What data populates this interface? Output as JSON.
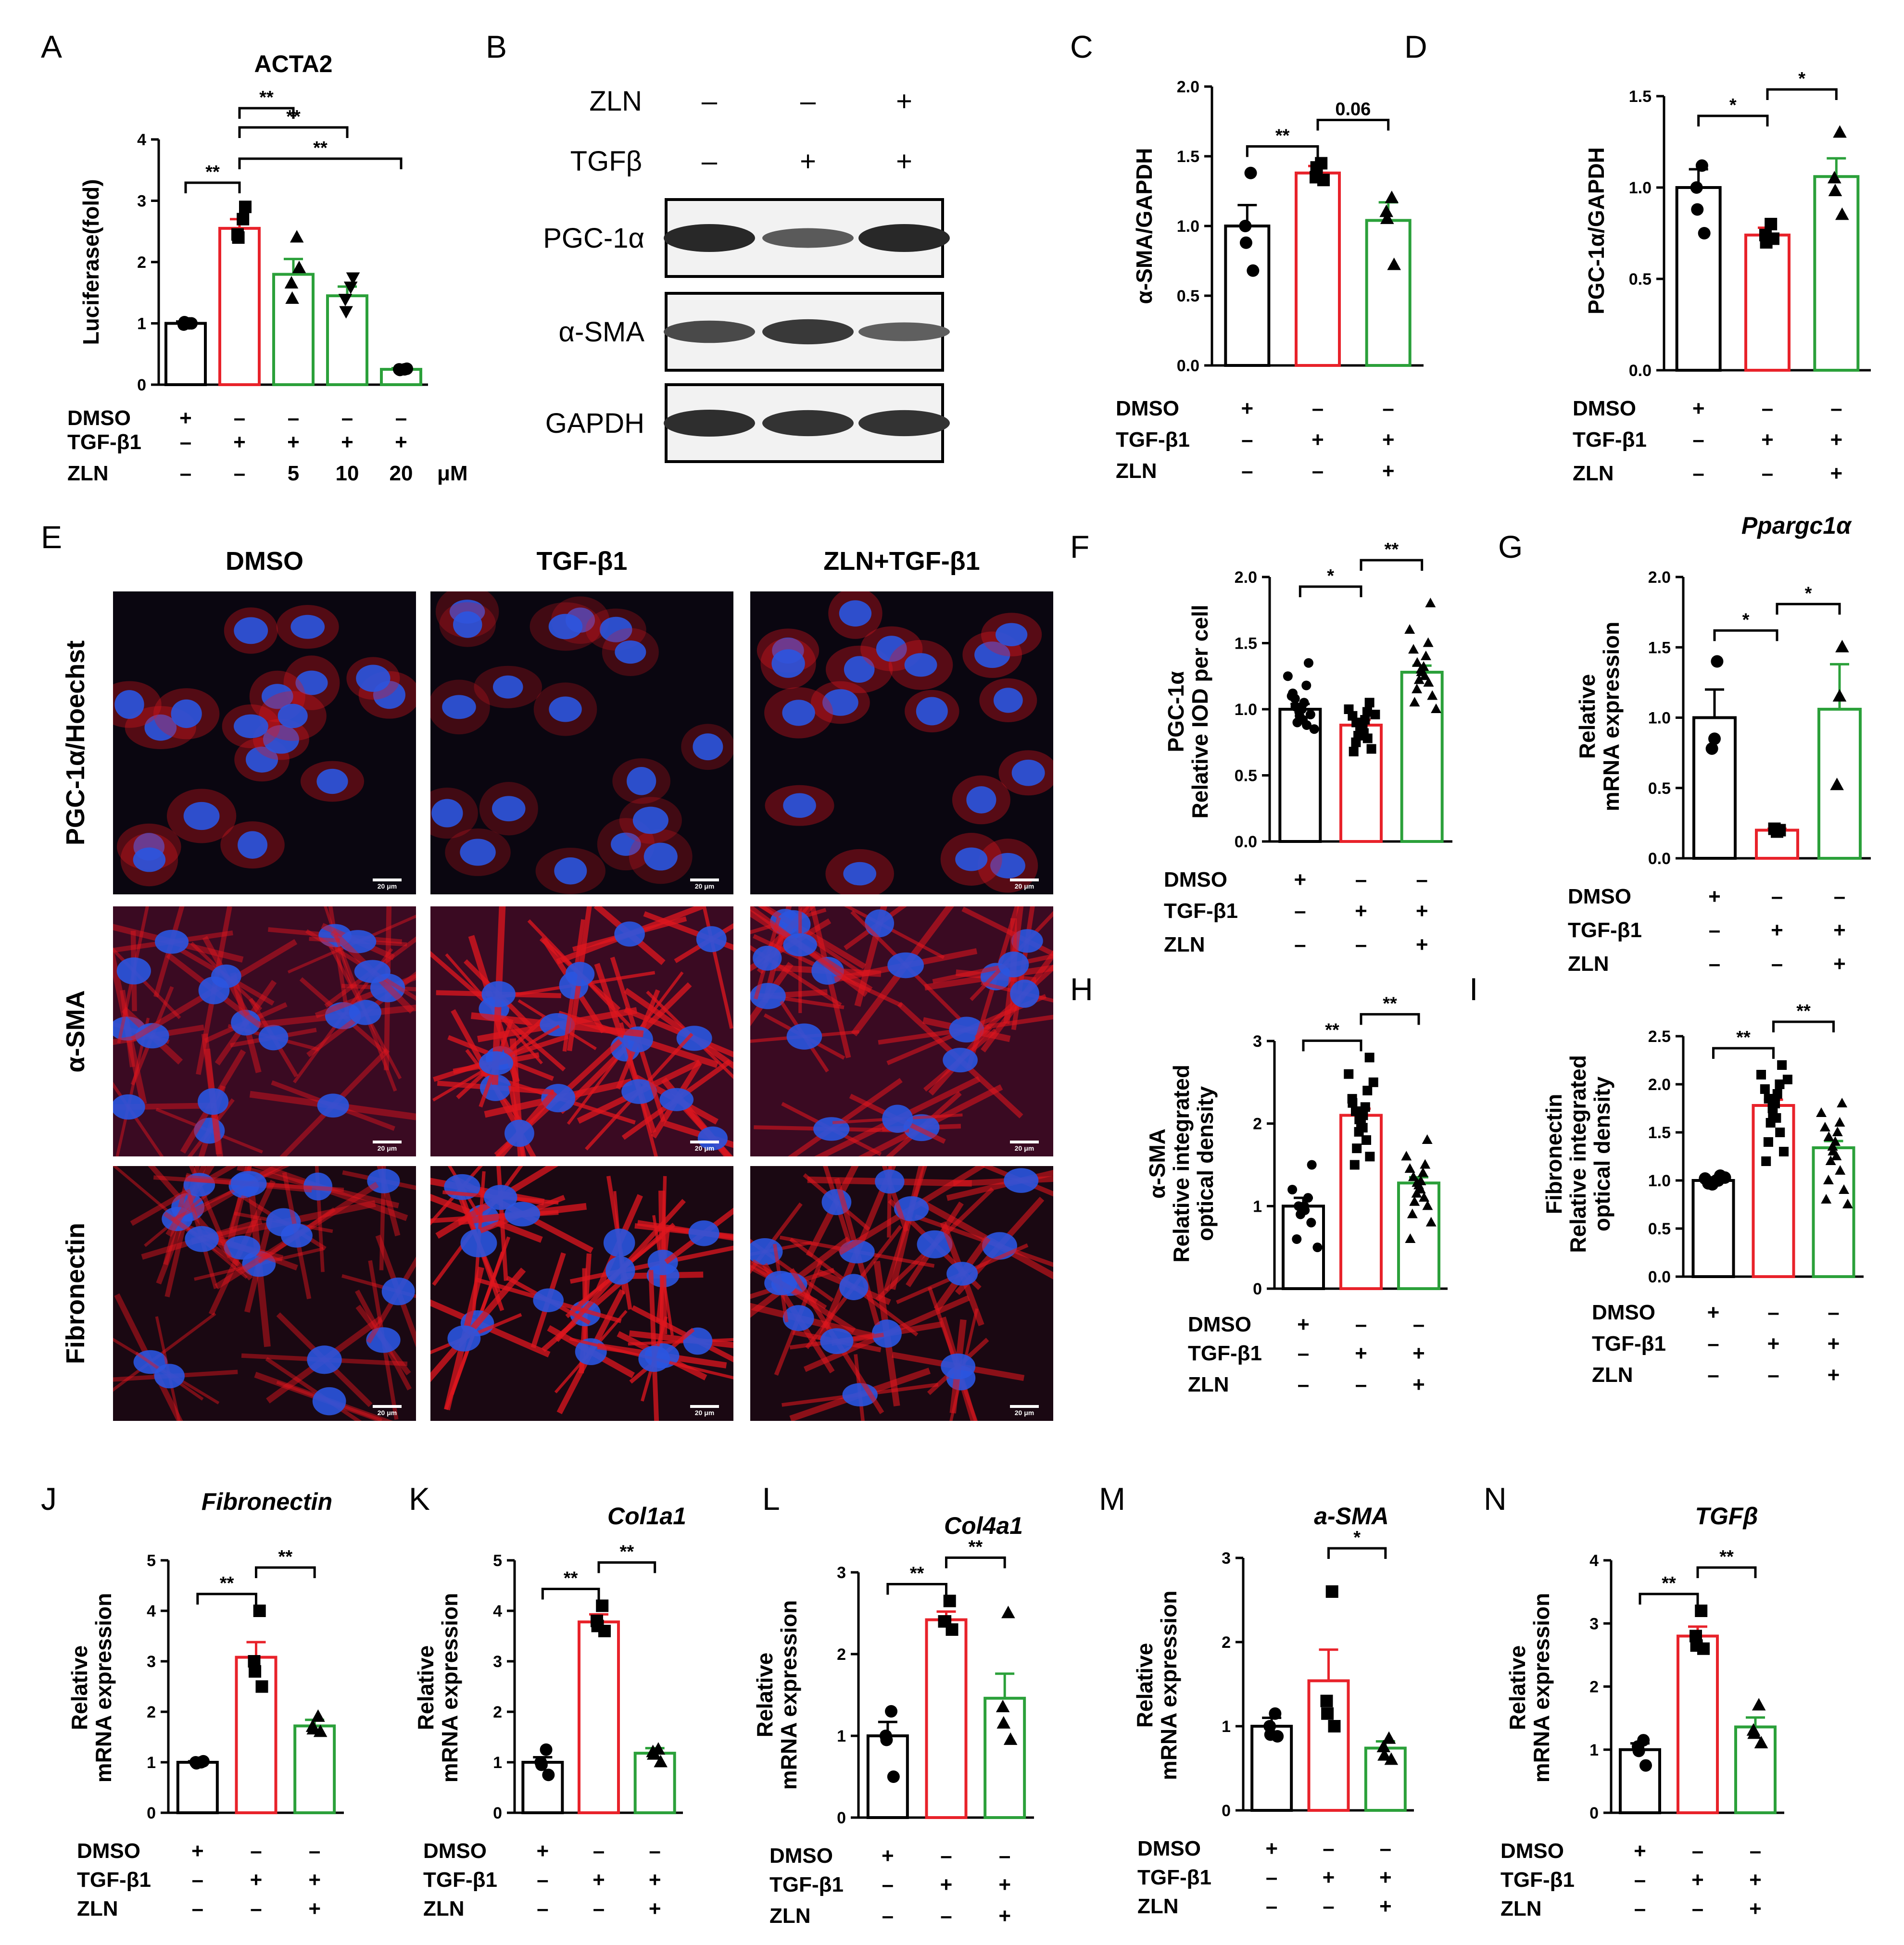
{
  "figure": {
    "panel_letters": [
      "A",
      "B",
      "C",
      "D",
      "E",
      "F",
      "G",
      "H",
      "I",
      "J",
      "K",
      "L",
      "M",
      "N"
    ],
    "colors": {
      "DMSO": "#000000",
      "TGF-β1": "#e8222a",
      "ZLN": "#2ba03a",
      "nucleus": "#2a55e0",
      "stain": "#e0161e"
    },
    "condition_rows": {
      "default": [
        {
          "label": "DMSO",
          "marks": [
            "+",
            "–",
            "–"
          ]
        },
        {
          "label": "TGF-β1",
          "marks": [
            "–",
            "+",
            "+"
          ]
        },
        {
          "label": "ZLN",
          "marks": [
            "–",
            "–",
            "+"
          ]
        }
      ],
      "A": [
        {
          "label": "DMSO",
          "marks": [
            "+",
            "–",
            "–",
            "–",
            "–"
          ]
        },
        {
          "label": "TGF-β1",
          "marks": [
            "–",
            "+",
            "+",
            "+",
            "+"
          ]
        },
        {
          "label": "ZLN",
          "marks": [
            "–",
            "–",
            "5",
            "10",
            "20"
          ]
        }
      ],
      "A_unit": "μM"
    },
    "western_blot": {
      "header_rows": [
        {
          "label": "ZLN",
          "marks": [
            "–",
            "–",
            "+"
          ]
        },
        {
          "label": "TGFβ",
          "marks": [
            "–",
            "+",
            "+"
          ]
        }
      ],
      "bands": [
        {
          "label": "PGC-1α",
          "intensity": [
            1.0,
            0.55,
            1.0
          ]
        },
        {
          "label": "α-SMA",
          "intensity": [
            0.7,
            0.85,
            0.5
          ]
        },
        {
          "label": "GAPDH",
          "intensity": [
            0.95,
            0.9,
            0.9
          ]
        }
      ]
    },
    "micrographs": {
      "columns": [
        "DMSO",
        "TGF-β1",
        "ZLN+TGF-β1"
      ],
      "rows": [
        "PGC-1α/Hoechst",
        "α-SMA",
        "Fibronectin"
      ],
      "scalebar": "20 μm"
    }
  },
  "chart_data": [
    {
      "id": "A",
      "type": "bar",
      "title": "ACTA2",
      "title_italic": false,
      "ylabel": "Luciferase(fold)",
      "ylim": [
        0,
        4
      ],
      "yticks": [
        "0",
        "1",
        "2",
        "3",
        "4"
      ],
      "categories": [
        "DMSO",
        "TGF-β1",
        "ZLN 5",
        "ZLN 10",
        "ZLN 20"
      ],
      "values": [
        1.0,
        2.55,
        1.8,
        1.45,
        0.25
      ],
      "sem": [
        0.03,
        0.15,
        0.25,
        0.15,
        0.02
      ],
      "points": [
        [
          1.0,
          0.98,
          1.02,
          1.0
        ],
        [
          2.7,
          2.45,
          2.4,
          2.9
        ],
        [
          2.4,
          1.65,
          1.4,
          1.9
        ],
        [
          1.6,
          1.4,
          1.2,
          1.75
        ],
        [
          0.25,
          0.25,
          0.24,
          0.26
        ]
      ],
      "markers": [
        "circle",
        "square",
        "triangle",
        "tri-down",
        "circle"
      ],
      "colors": [
        "#000000",
        "#e8222a",
        "#2ba03a",
        "#2ba03a",
        "#2ba03a"
      ],
      "brackets": [
        {
          "from": 0,
          "to": 1,
          "label": "**"
        },
        {
          "from": 1,
          "to": 2,
          "label": "**"
        },
        {
          "from": 1,
          "to": 3,
          "label": "**"
        },
        {
          "from": 1,
          "to": 4,
          "label": "**"
        }
      ]
    },
    {
      "id": "C",
      "type": "bar",
      "title": "",
      "ylabel": "α-SMA/GAPDH",
      "ylim": [
        0,
        2
      ],
      "yticks": [
        "0.0",
        "0.5",
        "1.0",
        "1.5",
        "2.0"
      ],
      "categories": [
        "DMSO",
        "TGF-β1",
        "ZLN+TGF-β1"
      ],
      "values": [
        1.0,
        1.38,
        1.04
      ],
      "sem": [
        0.15,
        0.05,
        0.13
      ],
      "points": [
        [
          1.38,
          1.0,
          0.88,
          0.68
        ],
        [
          1.45,
          1.35,
          1.42,
          1.33
        ],
        [
          1.2,
          1.1,
          1.05,
          0.72
        ]
      ],
      "markers": [
        "circle",
        "square",
        "triangle"
      ],
      "colors": [
        "#000000",
        "#e8222a",
        "#2ba03a"
      ],
      "brackets": [
        {
          "from": 0,
          "to": 1,
          "label": "**"
        },
        {
          "from": 1,
          "to": 2,
          "label": "0.06"
        }
      ]
    },
    {
      "id": "D",
      "type": "bar",
      "title": "",
      "ylabel": "PGC-1α/GAPDH",
      "ylim": [
        0,
        1.5
      ],
      "yticks": [
        "0.0",
        "0.5",
        "1.0",
        "1.5"
      ],
      "categories": [
        "DMSO",
        "TGF-β1",
        "ZLN+TGF-β1"
      ],
      "values": [
        1.0,
        0.74,
        1.06
      ],
      "sem": [
        0.1,
        0.04,
        0.1
      ],
      "points": [
        [
          1.12,
          1.0,
          0.88,
          0.75
        ],
        [
          0.8,
          0.74,
          0.7,
          0.72
        ],
        [
          1.3,
          1.05,
          0.98,
          0.85
        ]
      ],
      "markers": [
        "circle",
        "square",
        "triangle"
      ],
      "colors": [
        "#000000",
        "#e8222a",
        "#2ba03a"
      ],
      "brackets": [
        {
          "from": 0,
          "to": 1,
          "label": "*"
        },
        {
          "from": 1,
          "to": 2,
          "label": "*"
        }
      ]
    },
    {
      "id": "F",
      "type": "bar",
      "title": "",
      "ylabel": "PGC-1α Relative IOD per cell",
      "ylim": [
        0,
        2
      ],
      "yticks": [
        "0.0",
        "0.5",
        "1.0",
        "1.5",
        "2.0"
      ],
      "categories": [
        "DMSO",
        "TGF-β1",
        "ZLN+TGF-β1"
      ],
      "values": [
        1.0,
        0.88,
        1.28
      ],
      "sem": [
        0.04,
        0.04,
        0.05
      ],
      "points": [
        [
          1.35,
          1.25,
          1.18,
          1.1,
          1.05,
          1.02,
          1.0,
          0.98,
          0.95,
          0.92,
          0.9,
          0.88,
          1.08,
          0.96,
          1.12,
          0.85
        ],
        [
          1.05,
          1.0,
          0.98,
          0.95,
          0.92,
          0.9,
          0.88,
          0.86,
          0.85,
          0.82,
          0.8,
          0.78,
          0.75,
          0.7,
          0.68,
          0.96
        ],
        [
          1.8,
          1.6,
          1.5,
          1.45,
          1.4,
          1.35,
          1.32,
          1.3,
          1.28,
          1.25,
          1.22,
          1.2,
          1.15,
          1.1,
          1.05,
          1.0
        ]
      ],
      "markers": [
        "circle",
        "square",
        "triangle"
      ],
      "colors": [
        "#000000",
        "#e8222a",
        "#2ba03a"
      ],
      "brackets": [
        {
          "from": 0,
          "to": 1,
          "label": "*"
        },
        {
          "from": 1,
          "to": 2,
          "label": "**"
        }
      ]
    },
    {
      "id": "G",
      "type": "bar",
      "title": "Ppargc1α",
      "title_italic": true,
      "ylabel": "Relative mRNA expression",
      "ylim": [
        0,
        2
      ],
      "yticks": [
        "0.0",
        "0.5",
        "1.0",
        "1.5",
        "2.0"
      ],
      "categories": [
        "DMSO",
        "TGF-β1",
        "ZLN+TGF-β1"
      ],
      "values": [
        1.0,
        0.2,
        1.06
      ],
      "sem": [
        0.2,
        0.01,
        0.32
      ],
      "points": [
        [
          1.4,
          0.85,
          0.78
        ],
        [
          0.2,
          0.19,
          0.21
        ],
        [
          1.5,
          1.15,
          0.52
        ]
      ],
      "markers": [
        "circle",
        "square",
        "triangle"
      ],
      "colors": [
        "#000000",
        "#e8222a",
        "#2ba03a"
      ],
      "brackets": [
        {
          "from": 0,
          "to": 1,
          "label": "*"
        },
        {
          "from": 1,
          "to": 2,
          "label": "*"
        }
      ]
    },
    {
      "id": "H",
      "type": "bar",
      "title": "",
      "ylabel": "α-SMA Relative integrated optical density",
      "ylim": [
        0,
        3
      ],
      "yticks": [
        "0",
        "1",
        "2",
        "3"
      ],
      "categories": [
        "DMSO",
        "TGF-β1",
        "ZLN+TGF-β1"
      ],
      "values": [
        1.0,
        2.1,
        1.28
      ],
      "sem": [
        0.1,
        0.08,
        0.07
      ],
      "points": [
        [
          1.5,
          1.2,
          1.1,
          1.0,
          1.0,
          0.95,
          0.9,
          0.8,
          0.6,
          0.5
        ],
        [
          2.8,
          2.6,
          2.4,
          2.3,
          2.2,
          2.15,
          2.1,
          2.05,
          2.0,
          1.95,
          1.9,
          1.8,
          1.7,
          1.6,
          1.5,
          2.5,
          2.25
        ],
        [
          1.8,
          1.6,
          1.5,
          1.45,
          1.4,
          1.35,
          1.3,
          1.28,
          1.25,
          1.2,
          1.15,
          1.1,
          1.05,
          1.0,
          0.9,
          0.8,
          0.6
        ]
      ],
      "markers": [
        "circle",
        "square",
        "triangle"
      ],
      "colors": [
        "#000000",
        "#e8222a",
        "#2ba03a"
      ],
      "brackets": [
        {
          "from": 0,
          "to": 1,
          "label": "**"
        },
        {
          "from": 1,
          "to": 2,
          "label": "**"
        }
      ]
    },
    {
      "id": "I",
      "type": "bar",
      "title": "",
      "ylabel": "Fibronectin Relative integrated optical density",
      "ylim": [
        0,
        2.5
      ],
      "yticks": [
        "0.0",
        "0.5",
        "1.0",
        "1.5",
        "2.0",
        "2.5"
      ],
      "categories": [
        "DMSO",
        "TGF-β1",
        "ZLN+TGF-β1"
      ],
      "values": [
        1.0,
        1.78,
        1.34
      ],
      "sem": [
        0.02,
        0.06,
        0.07
      ],
      "points": [
        [
          1.05,
          1.02,
          1.0,
          0.98,
          0.96,
          1.0,
          0.97,
          1.03
        ],
        [
          2.2,
          2.1,
          2.0,
          1.95,
          1.9,
          1.85,
          1.8,
          1.75,
          1.7,
          1.65,
          1.6,
          1.5,
          1.4,
          1.3,
          1.2,
          2.05
        ],
        [
          1.8,
          1.7,
          1.6,
          1.55,
          1.5,
          1.45,
          1.4,
          1.35,
          1.3,
          1.25,
          1.2,
          1.1,
          1.0,
          0.9,
          0.8,
          0.75
        ]
      ],
      "markers": [
        "circle",
        "square",
        "triangle"
      ],
      "colors": [
        "#000000",
        "#e8222a",
        "#2ba03a"
      ],
      "brackets": [
        {
          "from": 0,
          "to": 1,
          "label": "**"
        },
        {
          "from": 1,
          "to": 2,
          "label": "**"
        }
      ]
    },
    {
      "id": "J",
      "type": "bar",
      "title": "Fibronectin",
      "title_italic": true,
      "ylabel": "Relative mRNA expression",
      "ylim": [
        0,
        5
      ],
      "yticks": [
        "0",
        "1",
        "2",
        "3",
        "4",
        "5"
      ],
      "categories": [
        "DMSO",
        "TGF-β1",
        "ZLN+TGF-β1"
      ],
      "values": [
        1.0,
        3.08,
        1.72
      ],
      "sem": [
        0.02,
        0.3,
        0.12
      ],
      "points": [
        [
          1.0,
          1.0,
          0.98,
          1.02
        ],
        [
          4.0,
          3.0,
          2.8,
          2.5
        ],
        [
          1.9,
          1.7,
          1.65,
          1.6
        ]
      ],
      "markers": [
        "circle",
        "square",
        "triangle"
      ],
      "colors": [
        "#000000",
        "#e8222a",
        "#2ba03a"
      ],
      "brackets": [
        {
          "from": 0,
          "to": 1,
          "label": "**"
        },
        {
          "from": 1,
          "to": 2,
          "label": "**"
        }
      ]
    },
    {
      "id": "K",
      "type": "bar",
      "title": "Col1a1",
      "title_italic": true,
      "ylabel": "Relative mRNA expression",
      "ylim": [
        0,
        5
      ],
      "yticks": [
        "0",
        "1",
        "2",
        "3",
        "4",
        "5"
      ],
      "categories": [
        "DMSO",
        "TGF-β1",
        "ZLN+TGF-β1"
      ],
      "values": [
        1.0,
        3.78,
        1.18
      ],
      "sem": [
        0.1,
        0.15,
        0.1
      ],
      "points": [
        [
          1.25,
          1.0,
          0.95,
          0.75
        ],
        [
          4.1,
          3.8,
          3.7,
          3.6
        ],
        [
          1.25,
          1.2,
          1.15,
          1.0
        ]
      ],
      "markers": [
        "circle",
        "square",
        "triangle"
      ],
      "colors": [
        "#000000",
        "#e8222a",
        "#2ba03a"
      ],
      "brackets": [
        {
          "from": 0,
          "to": 1,
          "label": "**"
        },
        {
          "from": 1,
          "to": 2,
          "label": "**"
        }
      ]
    },
    {
      "id": "L",
      "type": "bar",
      "title": "Col4a1",
      "title_italic": true,
      "ylabel": "Relative mRNA expression",
      "ylim": [
        0,
        3
      ],
      "yticks": [
        "0",
        "1",
        "2",
        "3"
      ],
      "categories": [
        "DMSO",
        "TGF-β1",
        "ZLN+TGF-β1"
      ],
      "values": [
        1.0,
        2.42,
        1.46
      ],
      "sem": [
        0.17,
        0.1,
        0.3
      ],
      "points": [
        [
          1.3,
          1.0,
          0.95,
          0.5
        ],
        [
          2.65,
          2.4,
          2.4,
          2.3
        ],
        [
          2.5,
          1.35,
          1.15,
          0.95
        ]
      ],
      "markers": [
        "circle",
        "square",
        "triangle"
      ],
      "colors": [
        "#000000",
        "#e8222a",
        "#2ba03a"
      ],
      "brackets": [
        {
          "from": 0,
          "to": 1,
          "label": "**"
        },
        {
          "from": 1,
          "to": 2,
          "label": "**"
        }
      ]
    },
    {
      "id": "M",
      "type": "bar",
      "title": "a-SMA",
      "title_italic": true,
      "ylabel": "Relative mRNA expression",
      "ylim": [
        0,
        3
      ],
      "yticks": [
        "0",
        "1",
        "2",
        "3"
      ],
      "categories": [
        "DMSO",
        "TGF-β1",
        "ZLN+TGF-β1"
      ],
      "values": [
        1.0,
        1.54,
        0.74
      ],
      "sem": [
        0.1,
        0.37,
        0.08
      ],
      "points": [
        [
          1.15,
          1.0,
          0.9,
          0.88
        ],
        [
          2.6,
          1.3,
          1.15,
          1.0
        ],
        [
          0.85,
          0.75,
          0.65,
          0.6
        ]
      ],
      "markers": [
        "circle",
        "square",
        "triangle"
      ],
      "colors": [
        "#000000",
        "#e8222a",
        "#2ba03a"
      ],
      "brackets": [
        {
          "from": 1,
          "to": 2,
          "label": "*"
        }
      ]
    },
    {
      "id": "N",
      "type": "bar",
      "title": "TGFβ",
      "title_italic": true,
      "ylabel": "Relative mRNA expression",
      "ylim": [
        0,
        4
      ],
      "yticks": [
        "0",
        "1",
        "2",
        "3",
        "4"
      ],
      "categories": [
        "DMSO",
        "TGF-β1",
        "ZLN+TGF-β1"
      ],
      "values": [
        1.0,
        2.8,
        1.36
      ],
      "sem": [
        0.1,
        0.15,
        0.15
      ],
      "points": [
        [
          1.15,
          1.05,
          0.98,
          0.75
        ],
        [
          3.2,
          2.8,
          2.65,
          2.6
        ],
        [
          1.7,
          1.3,
          1.25,
          1.1
        ]
      ],
      "markers": [
        "circle",
        "square",
        "triangle"
      ],
      "colors": [
        "#000000",
        "#e8222a",
        "#2ba03a"
      ],
      "brackets": [
        {
          "from": 0,
          "to": 1,
          "label": "**"
        },
        {
          "from": 1,
          "to": 2,
          "label": "**"
        }
      ]
    }
  ]
}
